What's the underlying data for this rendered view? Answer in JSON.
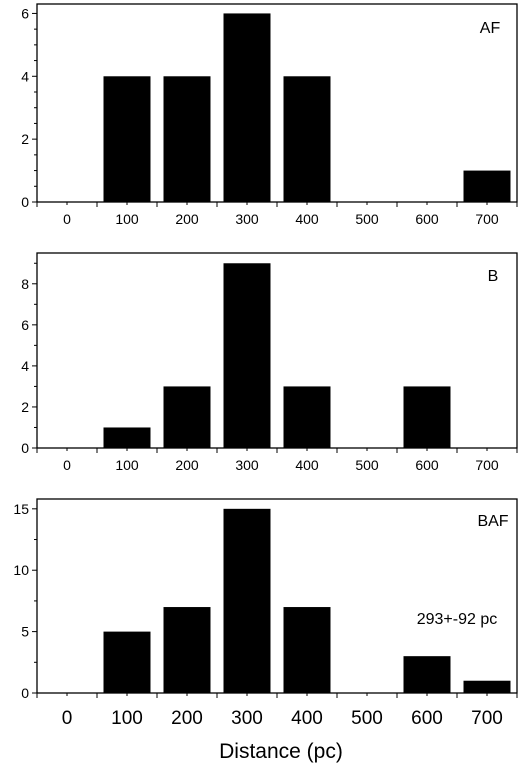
{
  "chart_data": [
    {
      "type": "bar",
      "label": "AF",
      "categories": [
        "0",
        "100",
        "200",
        "300",
        "400",
        "500",
        "600",
        "700"
      ],
      "values": [
        0,
        4,
        4,
        6,
        4,
        0,
        0,
        1
      ],
      "ylim": [
        0,
        6.3
      ],
      "yticks": [
        "0",
        "2",
        "4",
        "6"
      ],
      "xlabel": "",
      "ylabel": ""
    },
    {
      "type": "bar",
      "label": "B",
      "categories": [
        "0",
        "100",
        "200",
        "300",
        "400",
        "500",
        "600",
        "700"
      ],
      "values": [
        0,
        1,
        3,
        9,
        3,
        0,
        3,
        0
      ],
      "ylim": [
        0,
        9.5
      ],
      "yticks": [
        "0",
        "2",
        "4",
        "6",
        "8"
      ],
      "xlabel": "",
      "ylabel": ""
    },
    {
      "type": "bar",
      "label": "BAF",
      "annotation": "293+-92 pc",
      "categories": [
        "0",
        "100",
        "200",
        "300",
        "400",
        "500",
        "600",
        "700"
      ],
      "values": [
        0,
        5,
        7,
        15,
        7,
        0,
        3,
        1
      ],
      "ylim": [
        0,
        15.8
      ],
      "yticks": [
        "0",
        "5",
        "10",
        "15"
      ],
      "xlabel": "Distance (pc)",
      "ylabel": ""
    }
  ]
}
